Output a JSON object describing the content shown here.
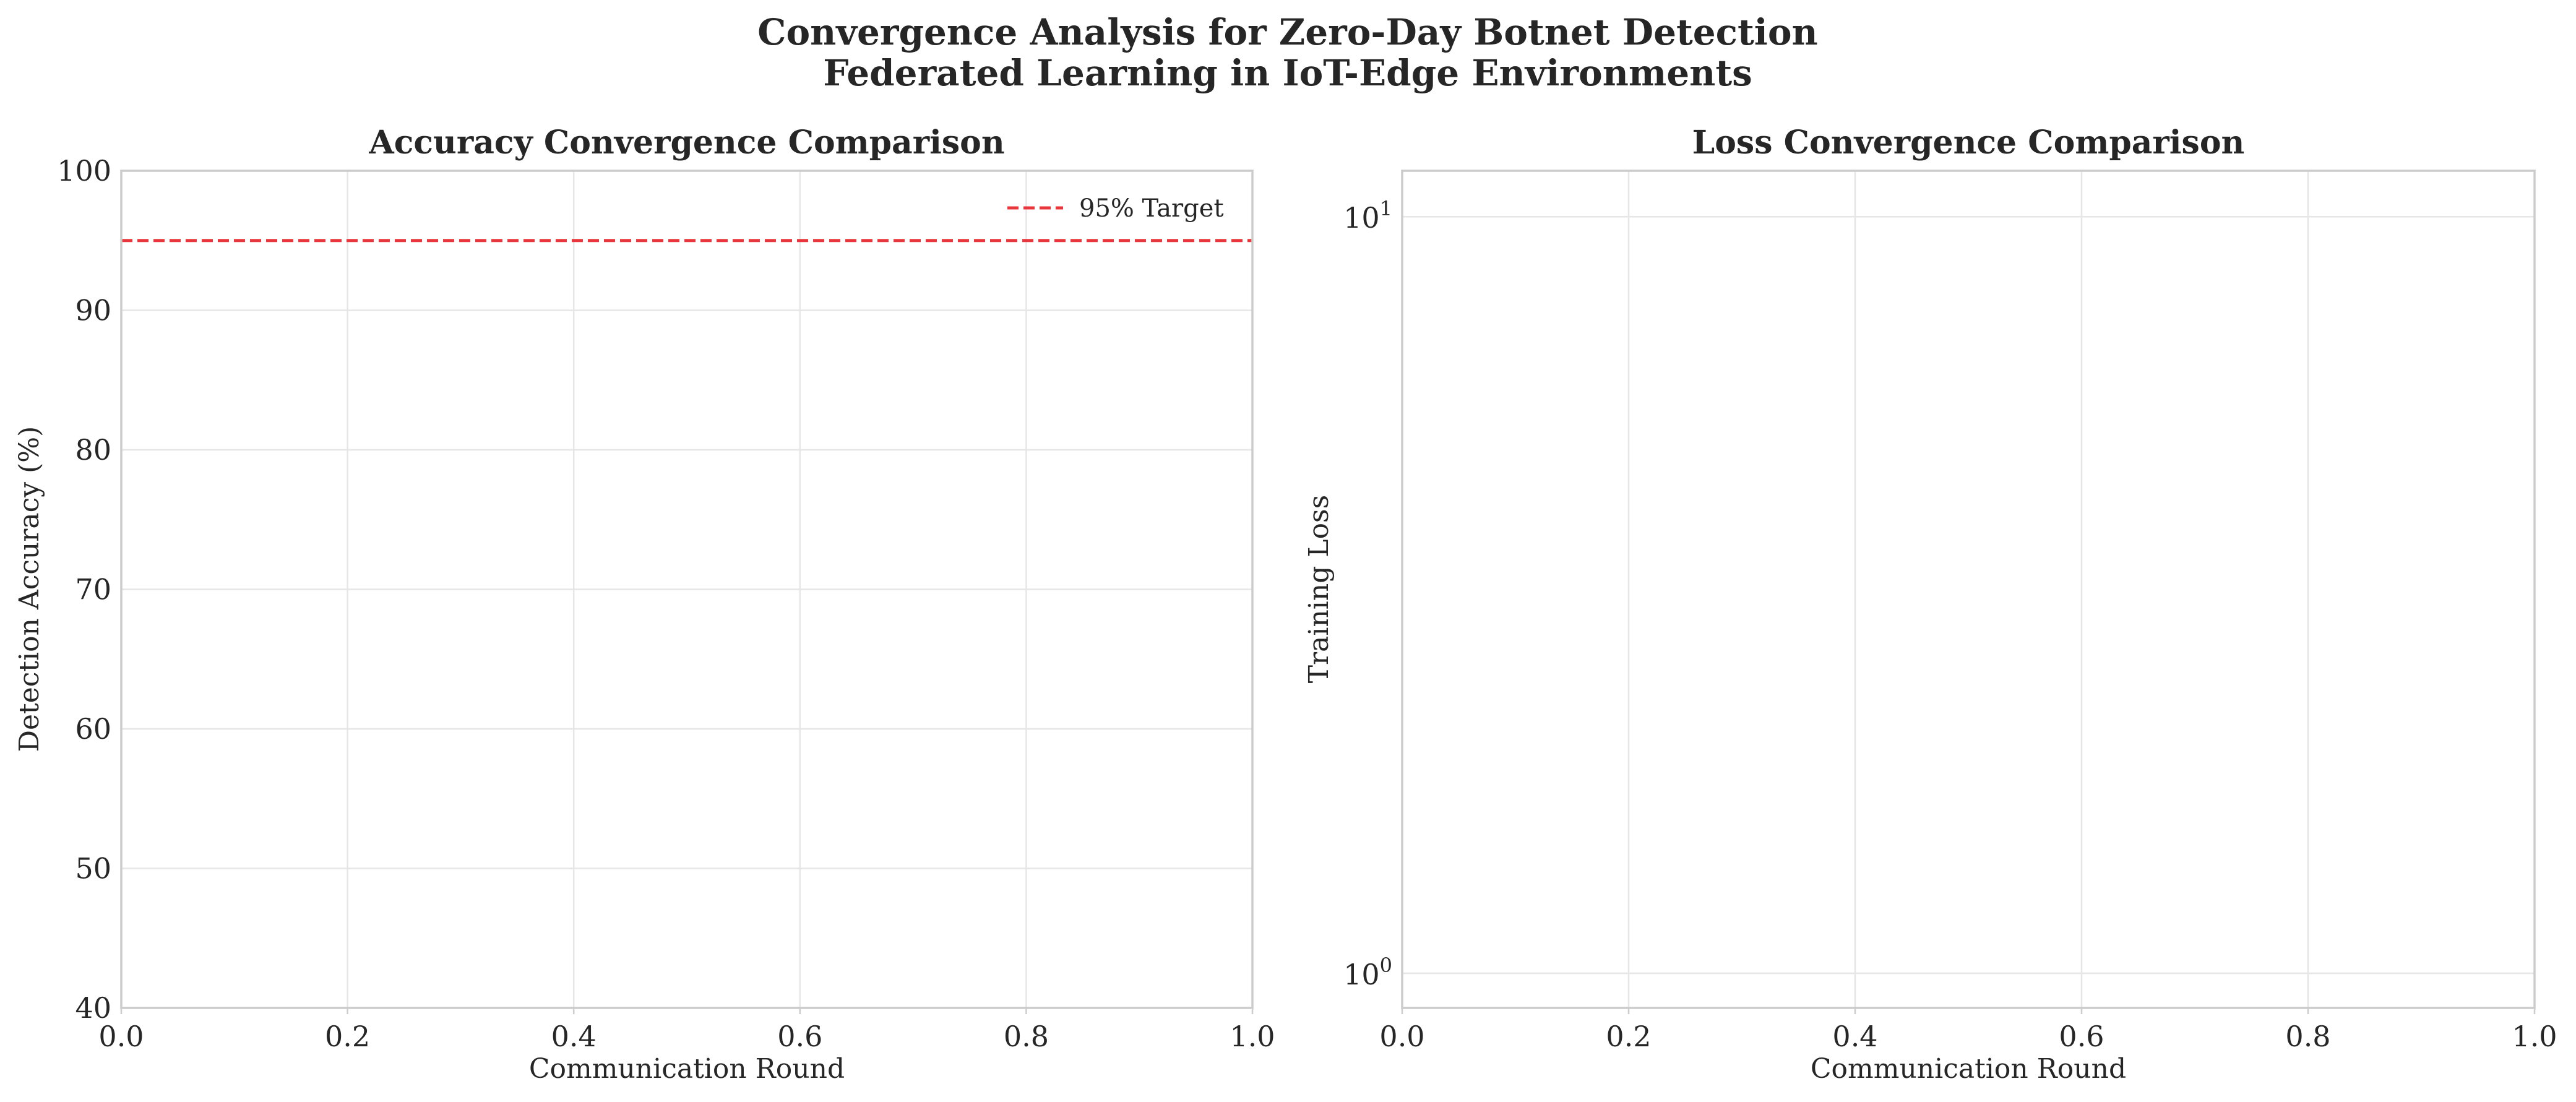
{
  "suptitle": {
    "line1": "Convergence Analysis for Zero-Day Botnet Detection",
    "line2": "Federated Learning in IoT-Edge Environments"
  },
  "chart_data": [
    {
      "type": "line",
      "title": "Accuracy Convergence Comparison",
      "xlabel": "Communication Round",
      "ylabel": "Detection Accuracy (%)",
      "xlim": [
        0.0,
        1.0
      ],
      "ylim": [
        40,
        100
      ],
      "xticks": [
        "0.0",
        "0.2",
        "0.4",
        "0.6",
        "0.8",
        "1.0"
      ],
      "yticks": [
        "40",
        "50",
        "60",
        "70",
        "80",
        "90",
        "100"
      ],
      "grid": true,
      "legend_position": "top-right",
      "reference_lines": [
        {
          "name": "95% Target",
          "orientation": "horizontal",
          "value": 95,
          "style": "dashed",
          "color": "#e8383d"
        }
      ],
      "series": []
    },
    {
      "type": "line",
      "title": "Loss Convergence Comparison",
      "xlabel": "Communication Round",
      "ylabel": "Training Loss",
      "xlim": [
        0.0,
        1.0
      ],
      "yscale": "log",
      "ylim": [
        0.9,
        11.5
      ],
      "xticks": [
        "0.0",
        "0.2",
        "0.4",
        "0.6",
        "0.8",
        "1.0"
      ],
      "yticks": [
        {
          "value": 1,
          "base": "10",
          "exp": "0"
        },
        {
          "value": 10,
          "base": "10",
          "exp": "1"
        }
      ],
      "grid": true,
      "series": []
    }
  ]
}
